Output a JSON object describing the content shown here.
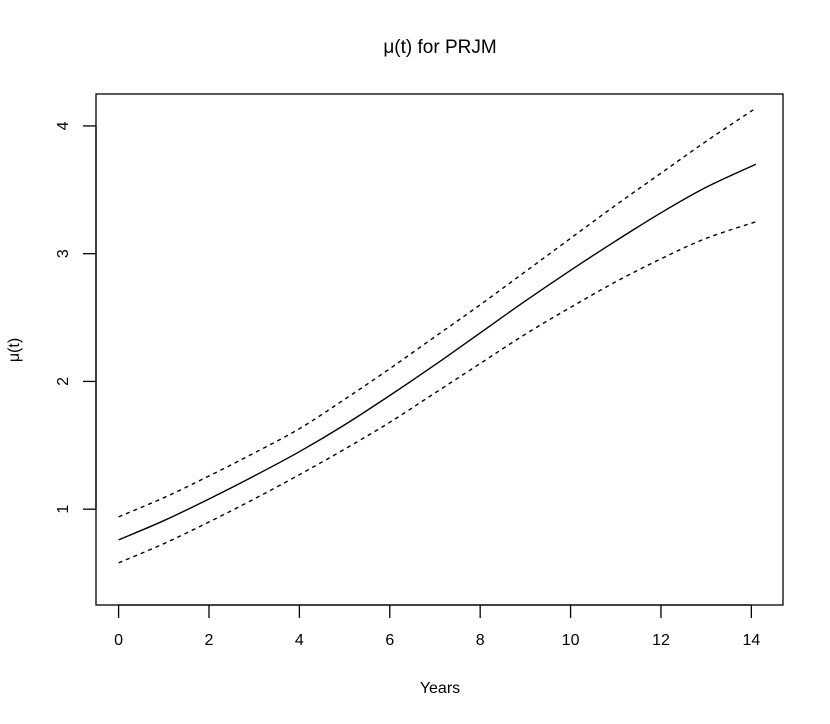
{
  "chart_data": {
    "type": "line",
    "title": "μ(t) for PRJM",
    "xlabel": "Years",
    "ylabel": "μ(t)",
    "xlim": [
      -0.5,
      14.7
    ],
    "ylim": [
      0.25,
      4.25
    ],
    "x_ticks": [
      0,
      2,
      4,
      6,
      8,
      10,
      12,
      14
    ],
    "x_tick_labels": [
      "0",
      "2",
      "4",
      "6",
      "8",
      "10",
      "12",
      "14"
    ],
    "y_ticks": [
      1,
      2,
      3,
      4
    ],
    "y_tick_labels": [
      "1",
      "2",
      "3",
      "4"
    ],
    "grid": false,
    "legend": "none",
    "x": [
      0,
      1,
      2,
      3,
      4,
      5,
      6,
      7,
      8,
      9,
      10,
      11,
      12,
      13,
      14.1
    ],
    "series": [
      {
        "style": "solid",
        "color": "#000000",
        "values": [
          0.76,
          0.91,
          1.08,
          1.26,
          1.45,
          1.66,
          1.89,
          2.13,
          2.38,
          2.63,
          2.87,
          3.1,
          3.32,
          3.52,
          3.7
        ]
      },
      {
        "style": "dashed",
        "color": "#000000",
        "values": [
          0.94,
          1.09,
          1.26,
          1.44,
          1.63,
          1.86,
          2.1,
          2.35,
          2.6,
          2.86,
          3.12,
          3.38,
          3.63,
          3.88,
          4.14
        ]
      },
      {
        "style": "dashed",
        "color": "#000000",
        "values": [
          0.58,
          0.73,
          0.9,
          1.08,
          1.27,
          1.47,
          1.68,
          1.91,
          2.14,
          2.37,
          2.58,
          2.78,
          2.96,
          3.12,
          3.25
        ]
      }
    ]
  }
}
